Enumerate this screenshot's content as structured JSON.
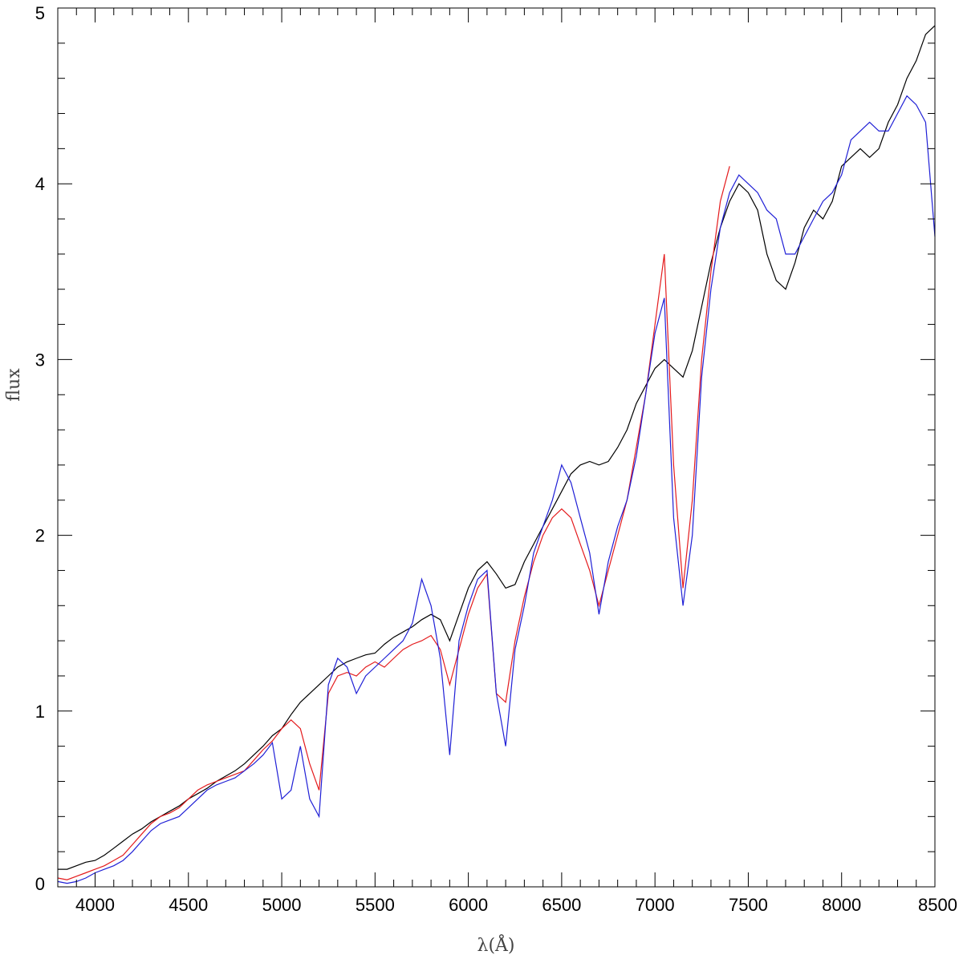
{
  "chart_data": {
    "type": "line",
    "title": "",
    "xlabel": "λ(Å)",
    "ylabel": "flux",
    "xlim": [
      3800,
      8500
    ],
    "ylim": [
      0,
      5
    ],
    "x_ticks": [
      4000,
      4500,
      5000,
      5500,
      6000,
      6500,
      7000,
      7500,
      8000,
      8500
    ],
    "x_tick_labels": [
      "4000",
      "4500",
      "5000",
      "5500",
      "6000",
      "6500",
      "7000",
      "7500",
      "8000",
      "8500"
    ],
    "y_ticks": [
      0,
      1,
      2,
      3,
      4,
      5
    ],
    "y_tick_labels": [
      "0",
      "1",
      "2",
      "3",
      "4",
      "5"
    ],
    "grid": false,
    "legend": "none",
    "colors": {
      "series_black": "#000000",
      "series_red": "#e41a1c",
      "series_blue": "#1f1fd6"
    },
    "series": [
      {
        "color": "#000000",
        "x": [
          3800,
          3850,
          3900,
          3950,
          4000,
          4050,
          4100,
          4150,
          4200,
          4250,
          4300,
          4350,
          4400,
          4450,
          4500,
          4550,
          4600,
          4650,
          4700,
          4750,
          4800,
          4850,
          4900,
          4950,
          5000,
          5050,
          5100,
          5150,
          5200,
          5250,
          5300,
          5350,
          5400,
          5450,
          5500,
          5550,
          5600,
          5650,
          5700,
          5750,
          5800,
          5850,
          5900,
          5950,
          6000,
          6050,
          6100,
          6150,
          6200,
          6250,
          6300,
          6350,
          6400,
          6450,
          6500,
          6550,
          6600,
          6650,
          6700,
          6750,
          6800,
          6850,
          6900,
          6950,
          7000,
          7050,
          7100,
          7150,
          7200,
          7250,
          7300,
          7350,
          7400,
          7450,
          7500,
          7550,
          7600,
          7650,
          7700,
          7750,
          7800,
          7850,
          7900,
          7950,
          8000,
          8050,
          8100,
          8150,
          8200,
          8250,
          8300,
          8350,
          8400,
          8450,
          8500
        ],
        "y": [
          0.1,
          0.1,
          0.12,
          0.14,
          0.15,
          0.18,
          0.22,
          0.26,
          0.3,
          0.33,
          0.37,
          0.4,
          0.43,
          0.46,
          0.5,
          0.53,
          0.56,
          0.6,
          0.63,
          0.66,
          0.7,
          0.75,
          0.8,
          0.86,
          0.9,
          0.98,
          1.05,
          1.1,
          1.15,
          1.2,
          1.25,
          1.28,
          1.3,
          1.32,
          1.33,
          1.38,
          1.42,
          1.45,
          1.48,
          1.52,
          1.55,
          1.52,
          1.4,
          1.55,
          1.7,
          1.8,
          1.85,
          1.78,
          1.7,
          1.72,
          1.85,
          1.95,
          2.05,
          2.15,
          2.25,
          2.35,
          2.4,
          2.42,
          2.4,
          2.42,
          2.5,
          2.6,
          2.75,
          2.85,
          2.95,
          3.0,
          2.95,
          2.9,
          3.05,
          3.3,
          3.55,
          3.75,
          3.9,
          4.0,
          3.95,
          3.85,
          3.6,
          3.45,
          3.4,
          3.55,
          3.75,
          3.85,
          3.8,
          3.9,
          4.1,
          4.15,
          4.2,
          4.15,
          4.2,
          4.35,
          4.45,
          4.6,
          4.7,
          4.85,
          4.9
        ]
      },
      {
        "color": "#e41a1c",
        "x": [
          3800,
          3850,
          3900,
          3950,
          4000,
          4050,
          4100,
          4150,
          4200,
          4250,
          4300,
          4350,
          4400,
          4450,
          4500,
          4550,
          4600,
          4650,
          4700,
          4750,
          4800,
          4850,
          4900,
          4950,
          5000,
          5050,
          5100,
          5150,
          5200,
          5250,
          5300,
          5350,
          5400,
          5450,
          5500,
          5550,
          5600,
          5650,
          5700,
          5750,
          5800,
          5850,
          5900,
          5950,
          6000,
          6050,
          6100,
          6150,
          6200,
          6250,
          6300,
          6350,
          6400,
          6450,
          6500,
          6550,
          6600,
          6650,
          6700,
          6750,
          6800,
          6850,
          6900,
          6950,
          7000,
          7050,
          7100,
          7150,
          7200,
          7250,
          7300,
          7350,
          7400
        ],
        "y": [
          0.05,
          0.04,
          0.06,
          0.08,
          0.1,
          0.12,
          0.15,
          0.18,
          0.24,
          0.3,
          0.36,
          0.4,
          0.42,
          0.45,
          0.5,
          0.55,
          0.58,
          0.6,
          0.62,
          0.64,
          0.66,
          0.72,
          0.78,
          0.83,
          0.9,
          0.95,
          0.9,
          0.7,
          0.55,
          1.1,
          1.2,
          1.22,
          1.2,
          1.25,
          1.28,
          1.25,
          1.3,
          1.35,
          1.38,
          1.4,
          1.43,
          1.35,
          1.15,
          1.35,
          1.55,
          1.7,
          1.78,
          1.1,
          1.05,
          1.4,
          1.65,
          1.85,
          2.0,
          2.1,
          2.15,
          2.1,
          1.95,
          1.8,
          1.6,
          1.8,
          2.0,
          2.2,
          2.5,
          2.8,
          3.2,
          3.6,
          2.4,
          1.7,
          2.2,
          3.0,
          3.5,
          3.9,
          4.1
        ]
      },
      {
        "color": "#1f1fd6",
        "x": [
          3800,
          3850,
          3900,
          3950,
          4000,
          4050,
          4100,
          4150,
          4200,
          4250,
          4300,
          4350,
          4400,
          4450,
          4500,
          4550,
          4600,
          4650,
          4700,
          4750,
          4800,
          4850,
          4900,
          4950,
          5000,
          5050,
          5100,
          5150,
          5200,
          5250,
          5300,
          5350,
          5400,
          5450,
          5500,
          5550,
          5600,
          5650,
          5700,
          5750,
          5800,
          5850,
          5900,
          5950,
          6000,
          6050,
          6100,
          6150,
          6200,
          6250,
          6300,
          6350,
          6400,
          6450,
          6500,
          6550,
          6600,
          6650,
          6700,
          6750,
          6800,
          6850,
          6900,
          6950,
          7000,
          7050,
          7100,
          7150,
          7200,
          7250,
          7300,
          7350,
          7400,
          7450,
          7500,
          7550,
          7600,
          7650,
          7700,
          7750,
          7800,
          7850,
          7900,
          7950,
          8000,
          8050,
          8100,
          8150,
          8200,
          8250,
          8300,
          8350,
          8400,
          8450,
          8500
        ],
        "y": [
          0.03,
          0.02,
          0.03,
          0.05,
          0.08,
          0.1,
          0.12,
          0.15,
          0.2,
          0.26,
          0.32,
          0.36,
          0.38,
          0.4,
          0.45,
          0.5,
          0.55,
          0.58,
          0.6,
          0.62,
          0.66,
          0.7,
          0.75,
          0.82,
          0.5,
          0.55,
          0.8,
          0.5,
          0.4,
          1.15,
          1.3,
          1.25,
          1.1,
          1.2,
          1.25,
          1.3,
          1.35,
          1.4,
          1.5,
          1.75,
          1.6,
          1.3,
          0.75,
          1.4,
          1.6,
          1.75,
          1.8,
          1.1,
          0.8,
          1.35,
          1.6,
          1.9,
          2.05,
          2.2,
          2.4,
          2.3,
          2.1,
          1.9,
          1.55,
          1.85,
          2.05,
          2.2,
          2.45,
          2.8,
          3.15,
          3.35,
          2.1,
          1.6,
          2.0,
          2.9,
          3.4,
          3.75,
          3.95,
          4.05,
          4.0,
          3.95,
          3.85,
          3.8,
          3.6,
          3.6,
          3.7,
          3.8,
          3.9,
          3.95,
          4.05,
          4.25,
          4.3,
          4.35,
          4.3,
          4.3,
          4.4,
          4.5,
          4.45,
          4.35,
          3.7
        ]
      }
    ]
  }
}
